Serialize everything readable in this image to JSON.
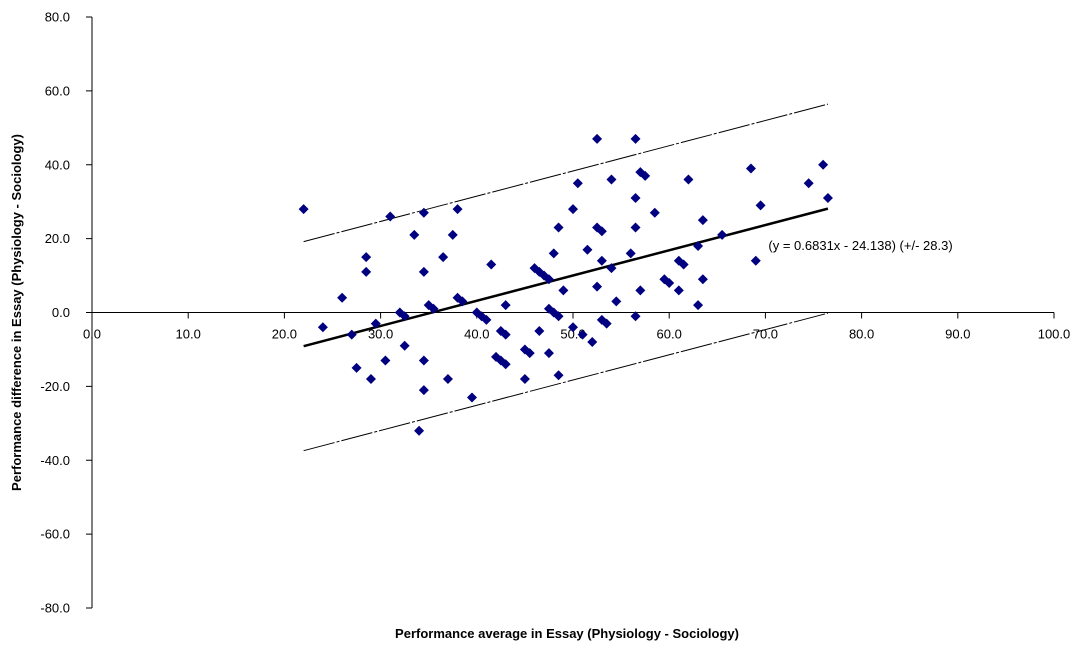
{
  "chart_data": {
    "type": "scatter",
    "title": "",
    "xlabel": "Performance average in Essay (Physiology - Sociology)",
    "ylabel": "Performance difference in Essay (Physiology - Sociology)",
    "xlim": [
      0,
      100
    ],
    "ylim": [
      -80,
      80
    ],
    "x_ticks": [
      0,
      10,
      20,
      30,
      40,
      50,
      60,
      70,
      80,
      90,
      100
    ],
    "y_ticks": [
      80,
      60,
      40,
      20,
      0,
      -20,
      -40,
      -60,
      -80
    ],
    "tick_format_decimals": 1,
    "grid": false,
    "legend": "none",
    "marker": "diamond",
    "marker_color": "#000080",
    "points": [
      [
        22,
        28
      ],
      [
        24,
        -4
      ],
      [
        26,
        4
      ],
      [
        27,
        -6
      ],
      [
        27.5,
        -15
      ],
      [
        28.5,
        11
      ],
      [
        28.5,
        15
      ],
      [
        29,
        -18
      ],
      [
        29.5,
        -3
      ],
      [
        30.5,
        -13
      ],
      [
        31,
        26
      ],
      [
        32,
        0
      ],
      [
        32.5,
        -1
      ],
      [
        32.5,
        -9
      ],
      [
        33.5,
        21
      ],
      [
        34,
        -32
      ],
      [
        34.5,
        -21
      ],
      [
        34.5,
        -13
      ],
      [
        34.5,
        11
      ],
      [
        34.5,
        27
      ],
      [
        35,
        2
      ],
      [
        35.5,
        1
      ],
      [
        36.5,
        15
      ],
      [
        37,
        -18
      ],
      [
        37.5,
        21
      ],
      [
        38,
        28
      ],
      [
        38,
        4
      ],
      [
        38.5,
        3
      ],
      [
        39.5,
        -23
      ],
      [
        40,
        0
      ],
      [
        40.5,
        -1
      ],
      [
        41,
        -2
      ],
      [
        41.5,
        13
      ],
      [
        42,
        -12
      ],
      [
        42.5,
        -13
      ],
      [
        42.5,
        -5
      ],
      [
        43,
        -14
      ],
      [
        43,
        -6
      ],
      [
        43,
        2
      ],
      [
        45,
        -18
      ],
      [
        45,
        -10
      ],
      [
        45.5,
        -11
      ],
      [
        46,
        12
      ],
      [
        46.5,
        11
      ],
      [
        46.5,
        -5
      ],
      [
        47,
        10
      ],
      [
        47.5,
        9
      ],
      [
        47.5,
        -11
      ],
      [
        47.5,
        1
      ],
      [
        48,
        0
      ],
      [
        48,
        16
      ],
      [
        48.5,
        23
      ],
      [
        48.5,
        -1
      ],
      [
        48.5,
        -17
      ],
      [
        49,
        6
      ],
      [
        50,
        28
      ],
      [
        50,
        -4
      ],
      [
        50.5,
        35
      ],
      [
        51,
        -6
      ],
      [
        51.5,
        17
      ],
      [
        52,
        -8
      ],
      [
        52.5,
        23
      ],
      [
        52.5,
        7
      ],
      [
        52.5,
        47
      ],
      [
        53,
        22
      ],
      [
        53,
        14
      ],
      [
        53,
        -2
      ],
      [
        53.5,
        -3
      ],
      [
        54,
        36
      ],
      [
        54,
        12
      ],
      [
        54.5,
        3
      ],
      [
        56,
        16
      ],
      [
        56.5,
        31
      ],
      [
        56.5,
        23
      ],
      [
        56.5,
        47
      ],
      [
        56.5,
        -1
      ],
      [
        57,
        38
      ],
      [
        57,
        6
      ],
      [
        57.5,
        37
      ],
      [
        58.5,
        27
      ],
      [
        59.5,
        9
      ],
      [
        60,
        8
      ],
      [
        61,
        14
      ],
      [
        61,
        6
      ],
      [
        61.5,
        13
      ],
      [
        62,
        36
      ],
      [
        63,
        18
      ],
      [
        63,
        2
      ],
      [
        63.5,
        25
      ],
      [
        63.5,
        9
      ],
      [
        65.5,
        21
      ],
      [
        68.5,
        39
      ],
      [
        69,
        14
      ],
      [
        69.5,
        29
      ],
      [
        74.5,
        35
      ],
      [
        76,
        40
      ],
      [
        76.5,
        31
      ]
    ],
    "regression": {
      "slope": 0.6831,
      "intercept": -24.138,
      "ci": 28.3,
      "x_range": [
        22,
        76.5
      ],
      "label": "(y = 0.6831x - 24.138) (+/- 28.3)",
      "label_position": [
        70,
        18
      ]
    }
  }
}
